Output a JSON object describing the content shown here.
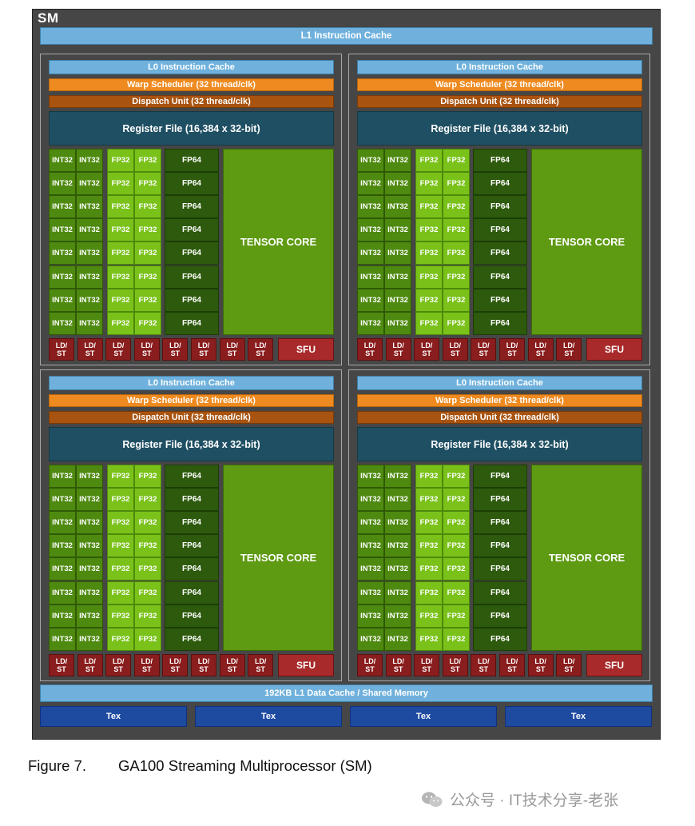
{
  "sm": {
    "title": "SM",
    "l1_instruction_cache": "L1 Instruction Cache",
    "l1_data_cache": "192KB L1 Data Cache / Shared Memory",
    "tex_units": [
      "Tex",
      "Tex",
      "Tex",
      "Tex"
    ]
  },
  "partition": {
    "l0_cache": "L0 Instruction Cache",
    "warp_scheduler": "Warp Scheduler (32 thread/clk)",
    "dispatch_unit": "Dispatch Unit (32 thread/clk)",
    "register_file": "Register File (16,384 x 32-bit)",
    "int32": "INT32",
    "fp32": "FP32",
    "fp64": "FP64",
    "tensor_core": "TENSOR CORE",
    "ldst_line1": "LD/",
    "ldst_line2": "ST",
    "sfu": "SFU",
    "core_rows": 8,
    "ldst_units": 8
  },
  "partitions_count": 4,
  "colors": {
    "int32": "#4e8a10",
    "fp32": "#7ac21a",
    "fp64": "#2d5a0c",
    "tensor": "#5e9a12",
    "ldst": "#8a1d1d",
    "warp": "#ee8a1f",
    "dispatch": "#a8530f",
    "cache": "#6fb1dc",
    "tex": "#1e4aa0"
  },
  "caption": {
    "label": "Figure 7.",
    "text": "GA100 Streaming Multiprocessor (SM)"
  },
  "watermark": {
    "text": "公众号 · IT技术分享-老张"
  }
}
